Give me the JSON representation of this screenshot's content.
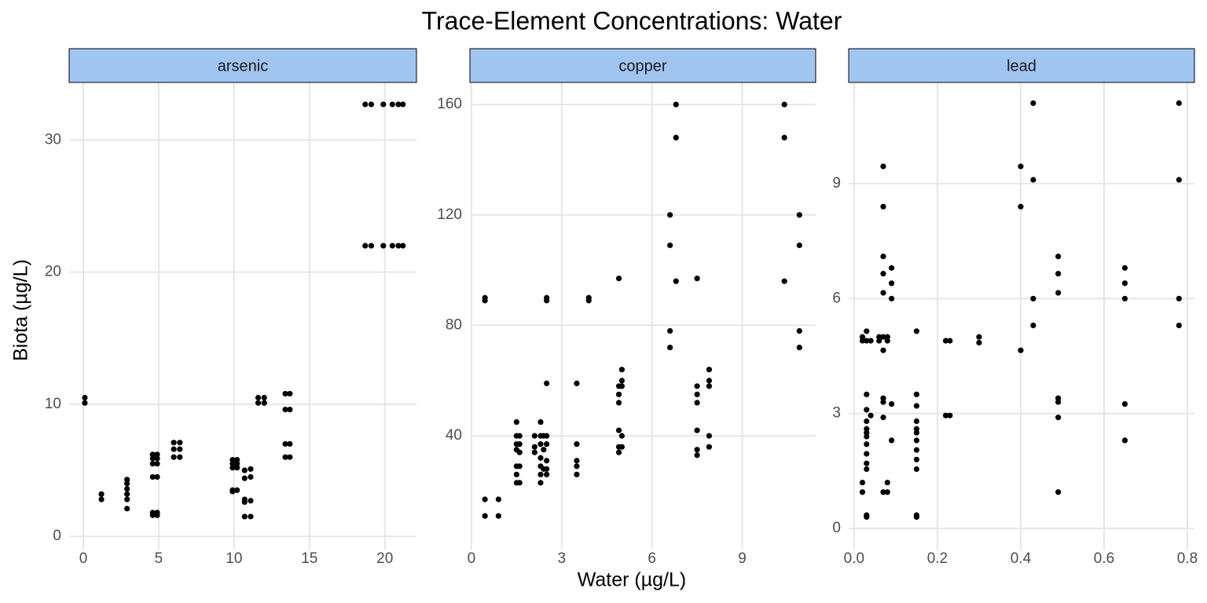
{
  "title": "Trace-Element Concentrations: Water",
  "x_label": "Water (µg/L)",
  "y_label": "Biota (µg/L)",
  "chart_data": [
    {
      "type": "scatter",
      "title": "arsenic",
      "color": "#000000",
      "grid": true,
      "xlim": [
        -0.94,
        22.1
      ],
      "ylim": [
        -1.0,
        34.3
      ],
      "xticks": [
        0,
        5,
        10,
        15,
        20
      ],
      "yticks": [
        0,
        10,
        20,
        30
      ],
      "x": [
        0.1,
        0.1,
        1.2,
        1.2,
        2.9,
        2.9,
        2.9,
        2.9,
        2.9,
        2.9,
        4.6,
        4.6,
        4.6,
        4.6,
        4.6,
        4.6,
        4.9,
        4.9,
        4.9,
        4.9,
        4.9,
        4.9,
        6.0,
        6.0,
        6.0,
        6.4,
        6.4,
        6.4,
        9.9,
        9.9,
        9.9,
        9.9,
        9.9,
        10.2,
        10.2,
        10.2,
        10.2,
        10.7,
        10.7,
        10.7,
        10.7,
        10.7,
        11.1,
        11.1,
        11.1,
        11.1,
        11.6,
        11.6,
        12.0,
        12.0,
        13.4,
        13.4,
        13.4,
        13.4,
        13.7,
        13.7,
        13.7,
        13.7,
        18.7,
        18.7,
        19.1,
        19.1,
        19.9,
        19.9,
        20.5,
        20.5,
        20.9,
        20.9,
        21.2,
        21.2
      ],
      "values": [
        10.5,
        10.1,
        3.2,
        2.8,
        4.3,
        4.0,
        3.6,
        3.2,
        2.8,
        2.1,
        6.2,
        5.9,
        5.5,
        4.5,
        1.8,
        1.6,
        6.2,
        5.9,
        5.5,
        4.5,
        1.8,
        1.6,
        7.1,
        6.6,
        6.0,
        7.1,
        6.6,
        6.0,
        5.8,
        5.5,
        5.2,
        3.5,
        3.4,
        5.8,
        5.5,
        5.2,
        3.5,
        5.0,
        4.4,
        2.8,
        2.6,
        1.5,
        5.1,
        4.5,
        2.7,
        1.5,
        10.5,
        10.1,
        10.5,
        10.1,
        10.8,
        9.6,
        7.0,
        6.0,
        10.8,
        9.6,
        7.0,
        6.0,
        32.7,
        22.0,
        32.7,
        22.0,
        32.7,
        22.0,
        32.7,
        22.0,
        32.7,
        22.0,
        32.7,
        22.0
      ]
    },
    {
      "type": "scatter",
      "title": "copper",
      "color": "#000000",
      "grid": true,
      "xlim": [
        -0.05,
        11.44
      ],
      "ylim": [
        -1.2,
        167.7
      ],
      "xticks": [
        0,
        3,
        6,
        9
      ],
      "yticks": [
        40,
        80,
        120,
        160
      ],
      "x": [
        0.45,
        0.45,
        0.45,
        0.45,
        0.9,
        0.9,
        1.5,
        1.5,
        1.5,
        1.5,
        1.5,
        1.5,
        1.5,
        1.6,
        1.6,
        1.6,
        1.6,
        1.6,
        2.1,
        2.1,
        2.1,
        2.3,
        2.3,
        2.3,
        2.3,
        2.3,
        2.3,
        2.3,
        2.4,
        2.4,
        2.4,
        2.5,
        2.5,
        2.5,
        2.5,
        2.5,
        2.5,
        2.5,
        2.5,
        3.5,
        3.5,
        3.5,
        3.5,
        3.5,
        3.9,
        3.9,
        4.9,
        4.9,
        4.9,
        4.9,
        4.9,
        4.9,
        4.9,
        5.0,
        5.0,
        5.0,
        5.0,
        5.0,
        6.6,
        6.6,
        6.6,
        6.6,
        6.8,
        6.8,
        6.8,
        7.5,
        7.5,
        7.5,
        7.5,
        7.5,
        7.5,
        7.5,
        7.9,
        7.9,
        7.9,
        7.9,
        7.9,
        10.4,
        10.4,
        10.4,
        10.9,
        10.9,
        10.9,
        10.9
      ],
      "values": [
        90,
        89,
        17,
        11,
        17,
        11,
        45,
        40,
        37,
        35,
        29,
        26,
        23,
        40,
        37,
        34,
        29,
        23,
        40,
        36,
        34,
        45,
        40,
        37,
        32,
        29,
        26,
        23,
        40,
        35,
        28,
        90,
        89,
        59,
        40,
        37,
        31,
        28,
        26,
        59,
        37,
        31,
        29,
        26,
        90,
        89,
        97,
        58,
        55,
        52,
        42,
        36,
        34,
        64,
        60,
        58,
        40,
        36,
        120,
        109,
        78,
        72,
        160,
        148,
        96,
        97,
        58,
        55,
        52,
        42,
        35,
        33,
        64,
        60,
        58,
        40,
        36,
        160,
        148,
        96,
        120,
        109,
        78,
        72
      ]
    },
    {
      "type": "scatter",
      "title": "lead",
      "color": "#000000",
      "grid": true,
      "xlim": [
        -0.013,
        0.817
      ],
      "ylim": [
        -0.55,
        11.62
      ],
      "xticks": [
        {
          "value": 0,
          "label": "0.0"
        },
        0.2,
        0.4,
        0.6,
        0.8
      ],
      "yticks": [
        0,
        3,
        6,
        9
      ],
      "x": [
        0.02,
        0.02,
        0.02,
        0.02,
        0.03,
        0.03,
        0.03,
        0.03,
        0.03,
        0.03,
        0.03,
        0.03,
        0.03,
        0.03,
        0.03,
        0.03,
        0.03,
        0.03,
        0.04,
        0.04,
        0.06,
        0.06,
        0.07,
        0.07,
        0.07,
        0.07,
        0.07,
        0.07,
        0.07,
        0.07,
        0.07,
        0.07,
        0.07,
        0.08,
        0.08,
        0.08,
        0.08,
        0.09,
        0.09,
        0.09,
        0.09,
        0.09,
        0.15,
        0.15,
        0.15,
        0.15,
        0.15,
        0.15,
        0.15,
        0.15,
        0.15,
        0.15,
        0.15,
        0.15,
        0.22,
        0.22,
        0.23,
        0.23,
        0.3,
        0.3,
        0.4,
        0.4,
        0.4,
        0.43,
        0.43,
        0.43,
        0.43,
        0.49,
        0.49,
        0.49,
        0.49,
        0.49,
        0.49,
        0.49,
        0.65,
        0.65,
        0.65,
        0.65,
        0.65,
        0.78,
        0.78,
        0.78,
        0.78
      ],
      "values": [
        5.0,
        4.9,
        1.2,
        0.95,
        5.15,
        4.9,
        3.5,
        3.1,
        2.8,
        2.6,
        2.5,
        2.4,
        2.2,
        1.95,
        1.7,
        1.55,
        0.35,
        0.3,
        4.9,
        2.95,
        5.0,
        4.9,
        9.45,
        8.4,
        7.1,
        6.65,
        6.15,
        5.0,
        4.65,
        3.4,
        3.3,
        2.9,
        0.95,
        5.0,
        4.9,
        1.2,
        0.95,
        6.8,
        6.4,
        6.0,
        3.25,
        2.3,
        5.15,
        3.5,
        3.2,
        2.8,
        2.6,
        2.5,
        2.3,
        2.05,
        1.8,
        1.55,
        0.35,
        0.3,
        4.9,
        2.95,
        4.9,
        2.95,
        5.0,
        4.85,
        9.45,
        8.4,
        4.65,
        11.1,
        9.1,
        6.0,
        5.3,
        7.1,
        6.65,
        6.15,
        3.4,
        3.3,
        2.9,
        0.95,
        6.8,
        6.4,
        6.0,
        3.25,
        2.3,
        11.1,
        9.1,
        6.0,
        5.3
      ]
    }
  ]
}
